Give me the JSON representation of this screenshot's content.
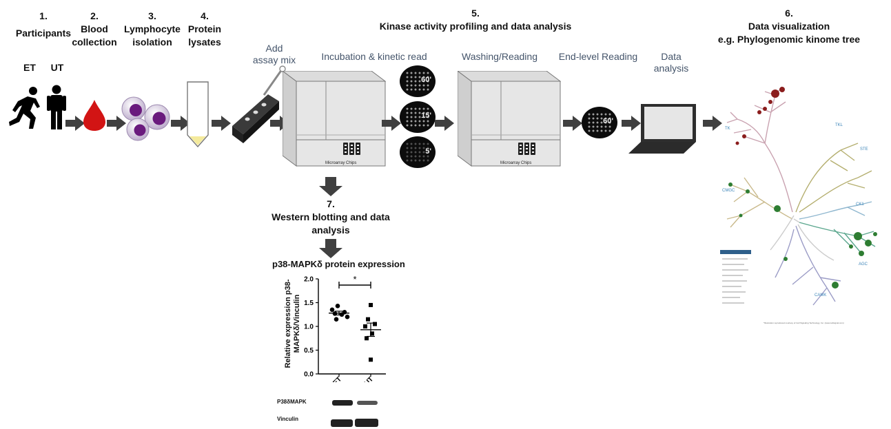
{
  "steps": {
    "s1": {
      "num": "1.",
      "label": "Participants"
    },
    "s2": {
      "num": "2.",
      "label1": "Blood",
      "label2": "collection"
    },
    "s3": {
      "num": "3.",
      "label1": "Lymphocyte",
      "label2": "isolation"
    },
    "s4": {
      "num": "4.",
      "label1": "Protein",
      "label2": "lysates"
    },
    "s5": {
      "num": "5.",
      "label": "Kinase activity profiling and data analysis"
    },
    "s6": {
      "num": "6.",
      "label1": "Data visualization",
      "label2": "e.g. Phylogenomic kinome tree"
    },
    "s7": {
      "num": "7.",
      "label1": "Western blotting and data",
      "label2": "analysis"
    }
  },
  "groups": {
    "et": "ET",
    "ut": "UT"
  },
  "substeps": {
    "add1": "Add",
    "add2": "assay mix",
    "incubation": "Incubation & kinetic read",
    "washing": "Washing/Reading",
    "endlevel": "End-level Reading",
    "data1": "Data",
    "data2": "analysis"
  },
  "reader_label": "Microarray Chips",
  "timepoints": {
    "t60": "60'",
    "t15": "15'",
    "t5": "5'",
    "end60": "60'"
  },
  "kinome": {
    "groups": [
      "TK",
      "TKL",
      "STE",
      "CK1",
      "AGC",
      "CAMK",
      "CMGC"
    ],
    "credit": "*Illustration reproduced courtesy of Cell Signaling Technology, Inc. (www.cellsignal.com)"
  },
  "colors": {
    "arrow": "#404040",
    "blood": "#d21414",
    "cell": "#7a1f8a",
    "subtitle": "#44546a",
    "tk": "#c9a2b0",
    "tkl": "#b4ae6e",
    "ste": "#b4ae6e",
    "ck1": "#8fb7cf",
    "agc": "#5aa68d",
    "camk": "#9b9cc6",
    "cmgc": "#c9b98a"
  },
  "chart_data": {
    "type": "scatter",
    "title": "p38-MAPKδ protein expression",
    "ylabel": "Relative expression p38-MAPKδ/Vinculin",
    "categories": [
      "ET",
      "UT"
    ],
    "ylim": [
      0,
      2.0
    ],
    "yticks": [
      "0.0",
      "0.5",
      "1.0",
      "1.5",
      "2.0"
    ],
    "significance": "*",
    "series": [
      {
        "name": "ET",
        "marker": "circle",
        "values": [
          1.43,
          1.35,
          1.3,
          1.27,
          1.25,
          1.2,
          1.15
        ],
        "mean": 1.28,
        "sem": 0.04
      },
      {
        "name": "UT",
        "marker": "square",
        "values": [
          1.45,
          1.15,
          1.05,
          1.0,
          0.85,
          0.75,
          0.3
        ],
        "mean": 0.93,
        "sem": 0.14
      }
    ]
  },
  "blot": {
    "p38": "P38δMAPK",
    "vinculin": "Vinculin"
  }
}
